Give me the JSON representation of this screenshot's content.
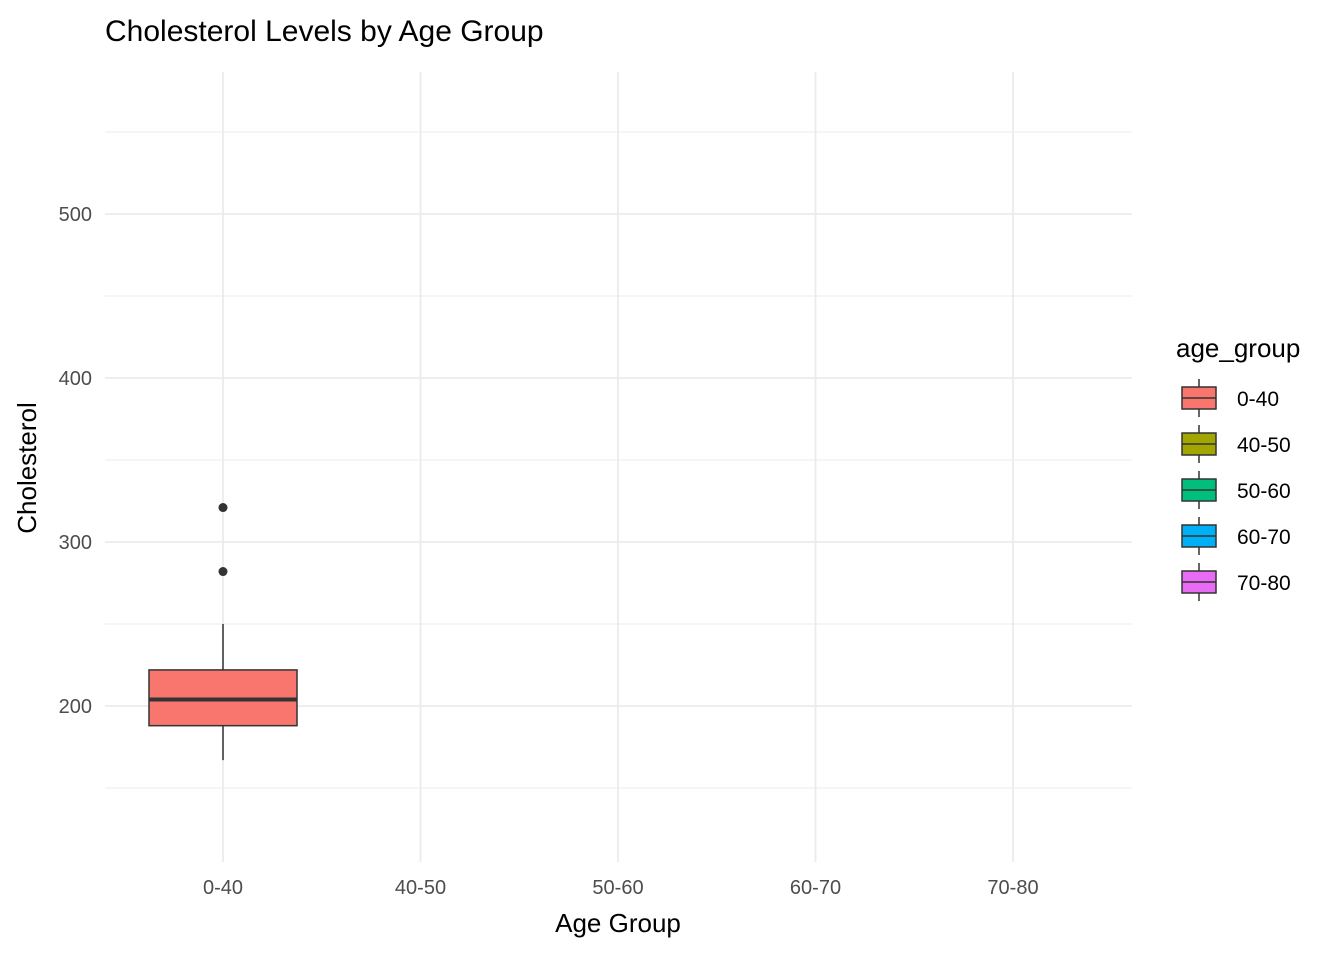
{
  "chart_data": {
    "type": "box",
    "title": "Cholesterol Levels by Age Group",
    "xlabel": "Age Group",
    "ylabel": "Cholesterol",
    "categories": [
      "0-40",
      "40-50",
      "50-60",
      "60-70",
      "70-80"
    ],
    "ylim": [
      110,
      570
    ],
    "y_ticks": [
      200,
      300,
      400,
      500
    ],
    "grid": true,
    "legend": {
      "title": "age_group",
      "position": "right",
      "entries": [
        {
          "label": "0-40",
          "color": "#F8766D"
        },
        {
          "label": "40-50",
          "color": "#A3A500"
        },
        {
          "label": "50-60",
          "color": "#00BF7D"
        },
        {
          "label": "60-70",
          "color": "#00B0F6"
        },
        {
          "label": "70-80",
          "color": "#E76BF3"
        }
      ]
    },
    "boxes": [
      {
        "category": "0-40",
        "whisker_low": 167,
        "q1": 188,
        "median": 204,
        "q3": 222,
        "whisker_high": 250,
        "outliers": [
          282,
          321
        ],
        "color": "#F8766D"
      }
    ]
  }
}
